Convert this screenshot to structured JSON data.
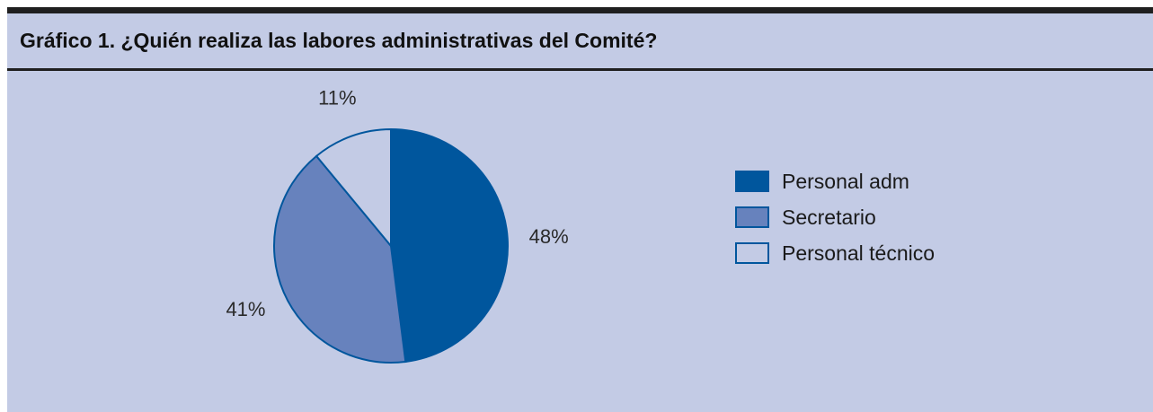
{
  "title": "Gráfico 1. ¿Quién realiza las labores administrativas del Comité?",
  "colors": {
    "background": "#c3cbe5",
    "rule": "#1f1f1f",
    "slice_outline": "#00569d"
  },
  "chart_data": {
    "type": "pie",
    "title": "Gráfico 1. ¿Quién realiza las labores administrativas del Comité?",
    "slices": [
      {
        "name": "Personal adm",
        "value": 48,
        "label": "48%",
        "color": "#00569d"
      },
      {
        "name": "Secretario",
        "value": 41,
        "label": "41%",
        "color": "#6782bd"
      },
      {
        "name": "Personal técnico",
        "value": 11,
        "label": "11%",
        "color": "#c3cbe5"
      }
    ],
    "legend_position": "right",
    "start": "top",
    "direction": "clockwise"
  }
}
